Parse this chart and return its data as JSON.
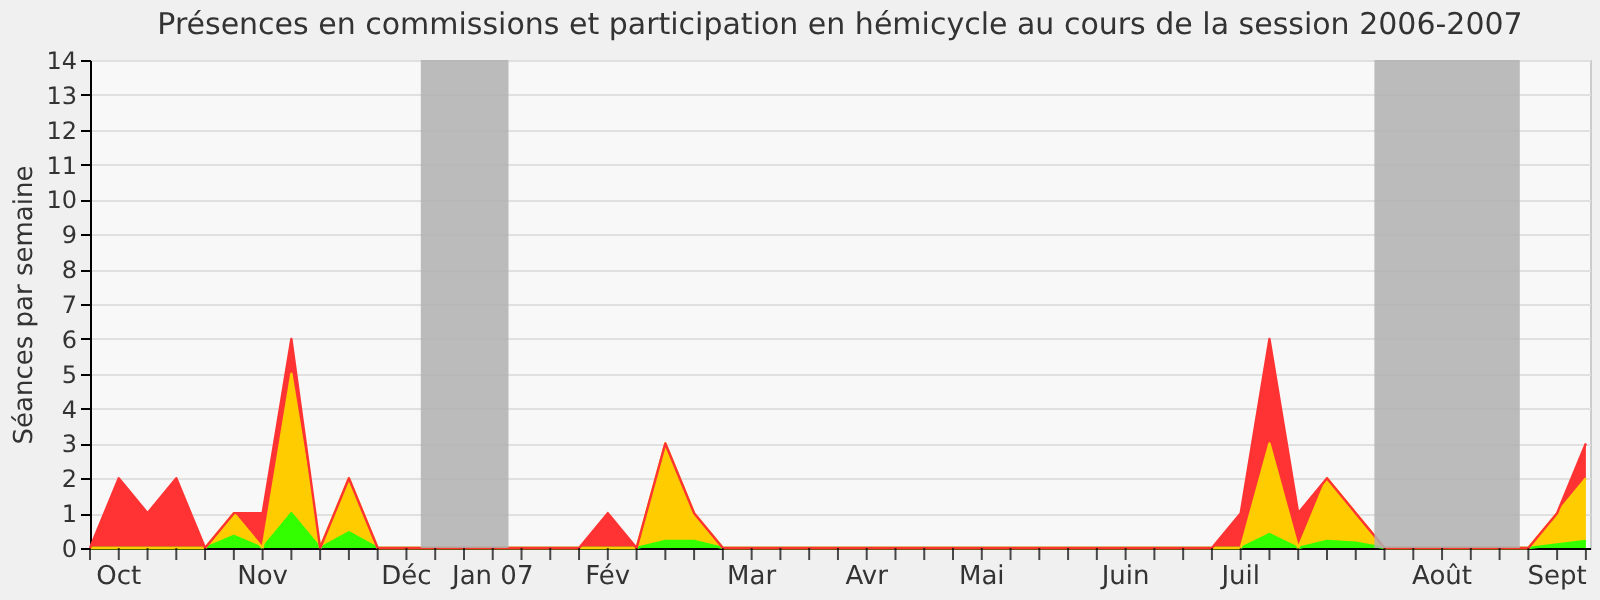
{
  "chart_data": {
    "type": "area",
    "title": "Présences en commissions et participation en hémicycle au cours de la session 2006-2007",
    "ylabel": "Séances par semaine",
    "x": [
      "2006-09-25",
      "2006-10-02",
      "2006-10-09",
      "2006-10-16",
      "2006-10-23",
      "2006-10-30",
      "2006-11-06",
      "2006-11-13",
      "2006-11-20",
      "2006-11-27",
      "2006-12-04",
      "2006-12-11",
      "2006-12-18",
      "2006-12-25",
      "2007-01-01",
      "2007-01-08",
      "2007-01-15",
      "2007-01-22",
      "2007-01-29",
      "2007-02-05",
      "2007-02-12",
      "2007-02-19",
      "2007-02-26",
      "2007-03-05",
      "2007-03-12",
      "2007-03-19",
      "2007-03-26",
      "2007-04-02",
      "2007-04-09",
      "2007-04-16",
      "2007-04-23",
      "2007-04-30",
      "2007-05-07",
      "2007-05-14",
      "2007-05-21",
      "2007-05-28",
      "2007-06-04",
      "2007-06-11",
      "2007-06-18",
      "2007-06-25",
      "2007-07-02",
      "2007-07-09",
      "2007-07-16",
      "2007-07-23",
      "2007-07-30",
      "2007-08-06",
      "2007-08-13",
      "2007-08-20",
      "2007-08-27",
      "2007-09-03",
      "2007-09-10",
      "2007-09-17",
      "2007-09-24"
    ],
    "stacked": true,
    "series": [
      {
        "color": "#33ff00",
        "values": [
          0,
          0,
          0,
          0,
          0,
          0.35,
          0,
          1,
          0,
          0.45,
          0,
          0,
          0,
          0,
          0,
          0,
          0,
          0,
          0,
          0,
          0.2,
          0.2,
          0,
          0,
          0,
          0,
          0,
          0,
          0,
          0,
          0,
          0,
          0,
          0,
          0,
          0,
          0,
          0,
          0,
          0,
          0,
          0.4,
          0,
          0.2,
          0.15,
          0,
          0,
          0,
          0,
          0,
          0,
          0.1,
          0.2
        ]
      },
      {
        "color": "#ffcc00",
        "values": [
          0,
          0,
          0,
          0,
          0,
          0.65,
          0,
          4,
          0,
          1.55,
          0,
          0,
          0,
          0,
          0,
          0,
          0,
          0,
          0,
          0,
          2.8,
          0.8,
          0,
          0,
          0,
          0,
          0,
          0,
          0,
          0,
          0,
          0,
          0,
          0,
          0,
          0,
          0,
          0,
          0,
          0,
          0,
          2.6,
          0,
          1.8,
          0.85,
          0,
          0,
          0,
          0,
          0,
          0,
          0.9,
          1.8
        ]
      },
      {
        "color": "#ff3333",
        "values": [
          0,
          2,
          1,
          2,
          0,
          0,
          1,
          1,
          0,
          0,
          0,
          0,
          0,
          0,
          0,
          0,
          0,
          0,
          1,
          0,
          0,
          0,
          0,
          0,
          0,
          0,
          0,
          0,
          0,
          0,
          0,
          0,
          0,
          0,
          0,
          0,
          0,
          0,
          0,
          0,
          1,
          3,
          1,
          0,
          0,
          0,
          0,
          0,
          0,
          0,
          0,
          0,
          1
        ]
      }
    ],
    "xlim": [
      "2006-09-25",
      "2007-09-25"
    ],
    "xticks": [
      {
        "value": "2006-09-25",
        "label": null
      },
      {
        "value": "2006-10-02",
        "label": "Oct"
      },
      {
        "value": "2006-10-09",
        "label": null
      },
      {
        "value": "2006-10-16",
        "label": null
      },
      {
        "value": "2006-10-23",
        "label": null
      },
      {
        "value": "2006-10-30",
        "label": null
      },
      {
        "value": "2006-11-06",
        "label": "Nov"
      },
      {
        "value": "2006-11-13",
        "label": null
      },
      {
        "value": "2006-11-20",
        "label": null
      },
      {
        "value": "2006-11-27",
        "label": null
      },
      {
        "value": "2006-12-04",
        "label": null
      },
      {
        "value": "2006-12-11",
        "label": "Déc"
      },
      {
        "value": "2006-12-18",
        "label": null
      },
      {
        "value": "2006-12-25",
        "label": null
      },
      {
        "value": "2007-01-01",
        "label": "Jan 07"
      },
      {
        "value": "2007-01-08",
        "label": null
      },
      {
        "value": "2007-01-15",
        "label": null
      },
      {
        "value": "2007-01-22",
        "label": null
      },
      {
        "value": "2007-01-29",
        "label": "Fév"
      },
      {
        "value": "2007-02-05",
        "label": null
      },
      {
        "value": "2007-02-12",
        "label": null
      },
      {
        "value": "2007-02-19",
        "label": null
      },
      {
        "value": "2007-02-26",
        "label": null
      },
      {
        "value": "2007-03-05",
        "label": "Mar"
      },
      {
        "value": "2007-03-12",
        "label": null
      },
      {
        "value": "2007-03-19",
        "label": null
      },
      {
        "value": "2007-03-26",
        "label": null
      },
      {
        "value": "2007-04-02",
        "label": "Avr"
      },
      {
        "value": "2007-04-09",
        "label": null
      },
      {
        "value": "2007-04-16",
        "label": null
      },
      {
        "value": "2007-04-23",
        "label": null
      },
      {
        "value": "2007-04-30",
        "label": "Mai"
      },
      {
        "value": "2007-05-07",
        "label": null
      },
      {
        "value": "2007-05-14",
        "label": null
      },
      {
        "value": "2007-05-21",
        "label": null
      },
      {
        "value": "2007-05-28",
        "label": null
      },
      {
        "value": "2007-06-04",
        "label": "Juin"
      },
      {
        "value": "2007-06-11",
        "label": null
      },
      {
        "value": "2007-06-18",
        "label": null
      },
      {
        "value": "2007-06-25",
        "label": null
      },
      {
        "value": "2007-07-02",
        "label": "Juil"
      },
      {
        "value": "2007-07-09",
        "label": null
      },
      {
        "value": "2007-07-16",
        "label": null
      },
      {
        "value": "2007-07-23",
        "label": null
      },
      {
        "value": "2007-07-30",
        "label": null
      },
      {
        "value": "2007-08-06",
        "label": null
      },
      {
        "value": "2007-08-13",
        "label": null
      },
      {
        "value": "2007-08-20",
        "label": "Août"
      },
      {
        "value": "2007-08-27",
        "label": null
      },
      {
        "value": "2007-09-03",
        "label": null
      },
      {
        "value": "2007-09-10",
        "label": null
      },
      {
        "value": "2007-09-17",
        "label": "Sept"
      },
      {
        "value": "2007-09-24",
        "label": null
      }
    ],
    "ylim": [
      0,
      14
    ],
    "yticks": [
      0,
      1,
      2,
      3,
      4,
      5,
      6,
      7,
      8,
      9,
      10,
      11,
      12,
      13,
      14
    ],
    "grid": "y",
    "bands": [
      {
        "axis": "x",
        "from": "2006-12-14T12:00",
        "to": "2007-01-04T20:00",
        "color": "#b0b0b0"
      },
      {
        "axis": "x",
        "from": "2007-08-03T13:00",
        "to": "2007-09-07T22:00",
        "color": "#b0b0b0"
      }
    ]
  }
}
